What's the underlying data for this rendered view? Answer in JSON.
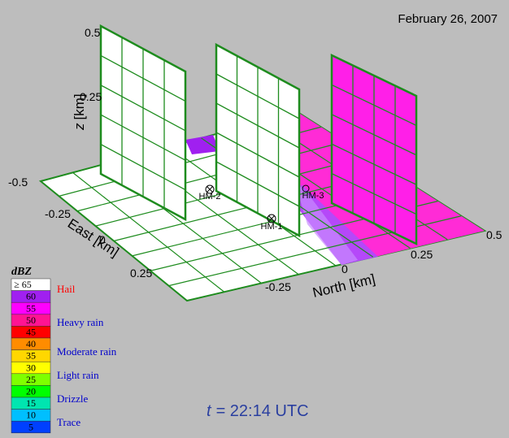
{
  "date": "February 26, 2007",
  "z_axis": {
    "label_var": "z",
    "label_unit": "[km]",
    "ticks": [
      "0.5",
      "0.25"
    ]
  },
  "east_axis": {
    "label": "East [km]",
    "ticks": [
      "-0.5",
      "-0.25",
      "0",
      "0.25"
    ]
  },
  "north_axis": {
    "label": "North [km]",
    "ticks": [
      "-0.25",
      "0",
      "0.25",
      "0.5"
    ]
  },
  "instruments": [
    "HM-2",
    "HM-1",
    "HM-3"
  ],
  "time": {
    "var": "t",
    "value": "= 22:14  UTC"
  },
  "legend": {
    "title": "dBZ",
    "levels": [
      {
        "value": "≥ 65",
        "color": "#ffffff"
      },
      {
        "value": "60",
        "color": "#a020f0"
      },
      {
        "value": "55",
        "color": "#ff00ff"
      },
      {
        "value": "50",
        "color": "#ff1493"
      },
      {
        "value": "45",
        "color": "#ff0000"
      },
      {
        "value": "40",
        "color": "#ff8c00"
      },
      {
        "value": "35",
        "color": "#ffd700"
      },
      {
        "value": "30",
        "color": "#ffff00"
      },
      {
        "value": "25",
        "color": "#7fff00"
      },
      {
        "value": "20",
        "color": "#00ff00"
      },
      {
        "value": "15",
        "color": "#00e5b0"
      },
      {
        "value": "10",
        "color": "#00bfff"
      },
      {
        "value": "5",
        "color": "#0040ff"
      }
    ],
    "categories": [
      {
        "label": "Hail",
        "color": "#ff0000"
      },
      {
        "label": "Heavy rain",
        "color": "#0000cc"
      },
      {
        "label": "Moderate rain",
        "color": "#0000cc"
      },
      {
        "label": "Light rain",
        "color": "#0000cc"
      },
      {
        "label": "Drizzle",
        "color": "#0000cc"
      },
      {
        "label": "Trace",
        "color": "#0000cc"
      }
    ]
  },
  "colors": {
    "grid": "#1e8c1e",
    "background": "#bdbdbd",
    "magenta": "#ff00ff",
    "purple": "#9a30ff"
  }
}
